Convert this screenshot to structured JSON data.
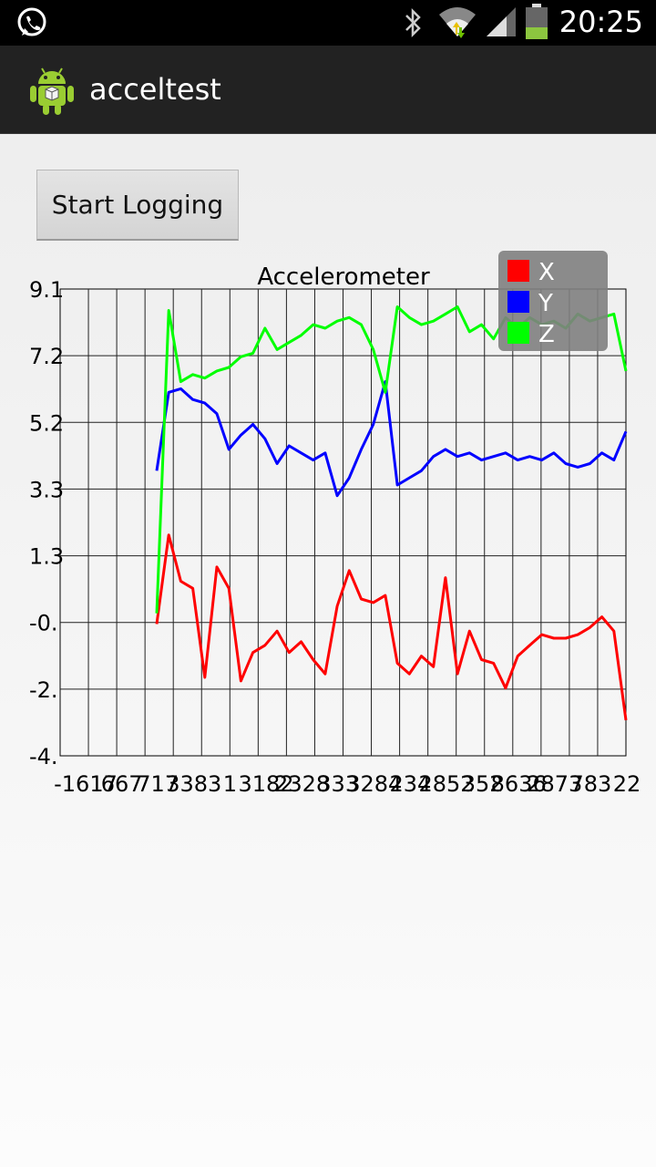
{
  "status_bar": {
    "time": "20:25",
    "icons": [
      "whatsapp-icon",
      "bluetooth-icon",
      "wifi-icon",
      "signal-icon",
      "battery-icon"
    ]
  },
  "action_bar": {
    "title": "acceltest",
    "icon": "android-app-icon"
  },
  "start_button": {
    "label": "Start Logging"
  },
  "chart_data": {
    "type": "line",
    "title": "Accelerometer",
    "ylim": [
      -4.0,
      9.1
    ],
    "y_tick_labels": [
      "9.1",
      "7.2",
      "5.2",
      "3.3",
      "1.3",
      "-0.",
      "-2.",
      "-4."
    ],
    "x_tick_labels": [
      "-1617",
      "667",
      "717",
      "3383",
      "1",
      "3182",
      "2328",
      "333",
      "3284",
      "234",
      "2852",
      "352",
      "8636",
      "2873",
      "783",
      "22"
    ],
    "grid": true,
    "legend_position": "top-right",
    "series": [
      {
        "name": "X",
        "color": "#ff0000",
        "values": [
          -0.3,
          2.2,
          0.9,
          0.7,
          -1.8,
          1.3,
          0.7,
          -1.9,
          -1.1,
          -0.9,
          -0.5,
          -1.1,
          -0.8,
          -1.3,
          -1.7,
          0.2,
          1.2,
          0.4,
          0.3,
          0.5,
          -1.4,
          -1.7,
          -1.2,
          -1.5,
          1.0,
          -1.7,
          -0.5,
          -1.3,
          -1.4,
          -2.1,
          -1.2,
          -0.9,
          -0.6,
          -0.7,
          -0.7,
          -0.6,
          -0.4,
          -0.1,
          -0.5,
          -3.0
        ]
      },
      {
        "name": "Y",
        "color": "#0000ff",
        "values": [
          4.0,
          6.2,
          6.3,
          6.0,
          5.9,
          5.6,
          4.6,
          5.0,
          5.3,
          4.9,
          4.2,
          4.7,
          4.5,
          4.3,
          4.5,
          3.3,
          3.8,
          4.6,
          5.3,
          6.5,
          3.6,
          3.8,
          4.0,
          4.4,
          4.6,
          4.4,
          4.5,
          4.3,
          4.4,
          4.5,
          4.3,
          4.4,
          4.3,
          4.5,
          4.2,
          4.1,
          4.2,
          4.5,
          4.3,
          5.1
        ]
      },
      {
        "name": "Z",
        "color": "#00ff00",
        "values": [
          0.0,
          8.5,
          6.5,
          6.7,
          6.6,
          6.8,
          6.9,
          7.2,
          7.3,
          8.0,
          7.4,
          7.6,
          7.8,
          8.1,
          8.0,
          8.2,
          8.3,
          8.1,
          7.4,
          6.2,
          8.6,
          8.3,
          8.1,
          8.2,
          8.4,
          8.6,
          7.9,
          8.1,
          7.7,
          8.3,
          8.0,
          8.3,
          8.1,
          8.2,
          8.0,
          8.4,
          8.2,
          8.3,
          8.4,
          6.8
        ]
      }
    ]
  }
}
